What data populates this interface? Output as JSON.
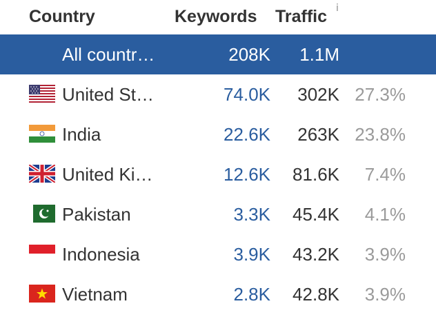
{
  "header": {
    "country": "Country",
    "keywords": "Keywords",
    "traffic": "Traffic",
    "info_icon": "i"
  },
  "summary": {
    "name": "All countries",
    "keywords": "208K",
    "traffic": "1.1M"
  },
  "rows": [
    {
      "flag": "us-flag-icon",
      "name": "United States",
      "keywords": "74.0K",
      "traffic": "302K",
      "share": "27.3%"
    },
    {
      "flag": "india-flag-icon",
      "name": "India",
      "keywords": "22.6K",
      "traffic": "263K",
      "share": "23.8%"
    },
    {
      "flag": "uk-flag-icon",
      "name": "United Kingdom",
      "keywords": "12.6K",
      "traffic": "81.6K",
      "share": "7.4%"
    },
    {
      "flag": "pakistan-flag-icon",
      "name": "Pakistan",
      "keywords": "3.3K",
      "traffic": "45.4K",
      "share": "4.1%"
    },
    {
      "flag": "indonesia-flag-icon",
      "name": "Indonesia",
      "keywords": "3.9K",
      "traffic": "43.2K",
      "share": "3.9%"
    },
    {
      "flag": "vietnam-flag-icon",
      "name": "Vietnam",
      "keywords": "2.8K",
      "traffic": "42.8K",
      "share": "3.9%"
    }
  ],
  "colors": {
    "selected_bg": "#2a5d9f",
    "link": "#2a5d9f",
    "text": "#333333",
    "muted": "#9a9a9a"
  }
}
